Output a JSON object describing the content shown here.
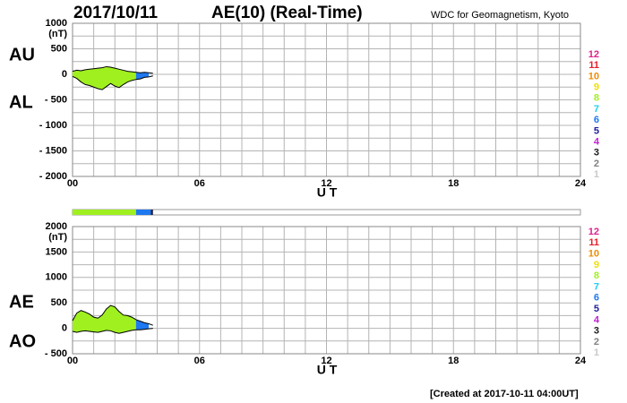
{
  "header": {
    "date": "2017/10/11",
    "title": "AE(10) (Real-Time)",
    "source": "WDC for Geomagnetism, Kyoto"
  },
  "footer": "[Created at 2017-10-11 04:00UT]",
  "station_legend": [
    {
      "label": "12",
      "color": "#e0208c"
    },
    {
      "label": "11",
      "color": "#e8202a"
    },
    {
      "label": "10",
      "color": "#f08c00"
    },
    {
      "label": "9",
      "color": "#f0e000"
    },
    {
      "label": "8",
      "color": "#a0f020"
    },
    {
      "label": "7",
      "color": "#20d0f0"
    },
    {
      "label": "6",
      "color": "#1e78f0"
    },
    {
      "label": "5",
      "color": "#2020a0"
    },
    {
      "label": "4",
      "color": "#c020d0"
    },
    {
      "label": "3",
      "color": "#202020"
    },
    {
      "label": "2",
      "color": "#808080"
    },
    {
      "label": "1",
      "color": "#c8c8c8"
    }
  ],
  "coverage_bar": {
    "xlim": [
      0,
      24
    ],
    "segments": [
      {
        "start": 0,
        "end": 3.0,
        "color": "#a0f020"
      },
      {
        "start": 3.0,
        "end": 3.7,
        "color": "#1e78f0"
      },
      {
        "start": 3.7,
        "end": 3.8,
        "color": "#202040"
      }
    ]
  },
  "chart_data": [
    {
      "type": "range-area",
      "ylabel": "(nT)",
      "xlabel": "U T",
      "x": [
        0,
        0.2,
        0.4,
        0.6,
        0.8,
        1.0,
        1.2,
        1.4,
        1.6,
        1.8,
        2.0,
        2.2,
        2.4,
        2.6,
        2.8,
        3.0,
        3.2,
        3.4,
        3.6,
        3.8
      ],
      "series": [
        {
          "name": "AU",
          "values": [
            60,
            80,
            70,
            90,
            100,
            110,
            120,
            130,
            150,
            140,
            120,
            100,
            80,
            60,
            50,
            40,
            30,
            40,
            30,
            20
          ]
        },
        {
          "name": "AL",
          "values": [
            -40,
            -80,
            -150,
            -200,
            -220,
            -250,
            -280,
            -300,
            -240,
            -180,
            -230,
            -260,
            -200,
            -150,
            -120,
            -100,
            -90,
            -60,
            -50,
            -30
          ]
        }
      ],
      "xlim": [
        0,
        24
      ],
      "ylim": [
        -2000,
        1000
      ],
      "xticks": [
        {
          "value": 0,
          "label": "00"
        },
        {
          "value": 6,
          "label": "06"
        },
        12,
        18,
        24
      ],
      "yticks": [
        1000,
        500,
        0,
        {
          "value": -500,
          "label": "- 500"
        },
        {
          "value": -1000,
          "label": "- 1000"
        },
        {
          "value": -1500,
          "label": "- 1500"
        },
        {
          "value": -2000,
          "label": "- 2000"
        }
      ],
      "xgrid": [
        1,
        2,
        3,
        4,
        5,
        7,
        8,
        9,
        10,
        11,
        13,
        14,
        15,
        16,
        17,
        19,
        20,
        21,
        22,
        23
      ],
      "ygrid": [
        -1750,
        -1250,
        -750,
        -250,
        250,
        750
      ]
    },
    {
      "type": "range-area",
      "ylabel": "(nT)",
      "xlabel": "U T",
      "x": [
        0,
        0.2,
        0.4,
        0.6,
        0.8,
        1.0,
        1.2,
        1.4,
        1.6,
        1.8,
        2.0,
        2.2,
        2.4,
        2.6,
        2.8,
        3.0,
        3.2,
        3.4,
        3.6,
        3.8
      ],
      "series": [
        {
          "name": "AE",
          "values": [
            150,
            300,
            350,
            320,
            280,
            220,
            200,
            260,
            380,
            450,
            420,
            330,
            260,
            250,
            220,
            170,
            140,
            110,
            90,
            60
          ]
        },
        {
          "name": "AO",
          "values": [
            -60,
            -80,
            -60,
            -50,
            -60,
            -70,
            -80,
            -60,
            -40,
            -50,
            -80,
            -100,
            -80,
            -60,
            -40,
            -30,
            -30,
            -20,
            -10,
            0
          ]
        }
      ],
      "xlim": [
        0,
        24
      ],
      "ylim": [
        -500,
        2000
      ],
      "xticks": [
        {
          "value": 0,
          "label": "00"
        },
        {
          "value": 6,
          "label": "06"
        },
        12,
        18,
        24
      ],
      "yticks": [
        2000,
        1500,
        1000,
        500,
        0,
        {
          "value": -500,
          "label": "- 500"
        }
      ],
      "xgrid": [
        1,
        2,
        3,
        4,
        5,
        7,
        8,
        9,
        10,
        11,
        13,
        14,
        15,
        16,
        17,
        19,
        20,
        21,
        22,
        23
      ],
      "ygrid": [
        -250,
        250,
        750,
        1250,
        1750
      ]
    }
  ]
}
